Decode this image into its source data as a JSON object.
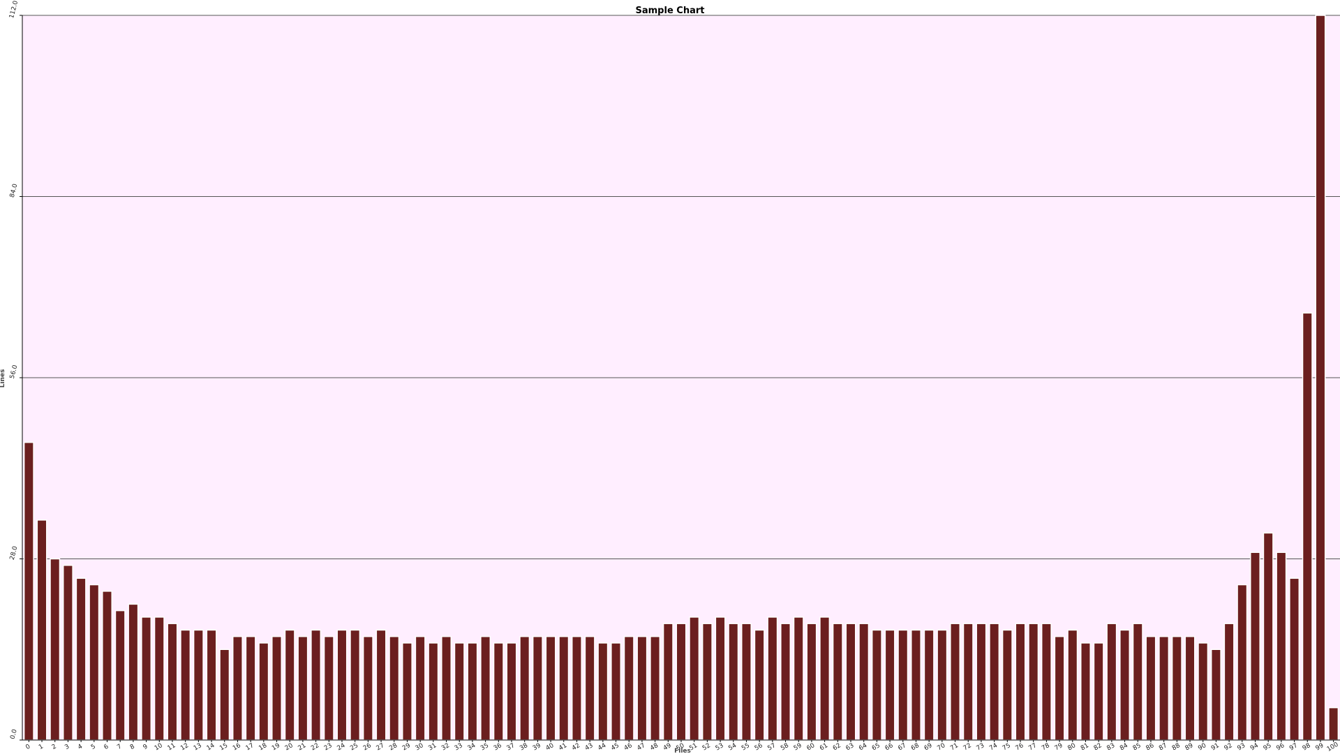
{
  "chart_data": {
    "type": "bar",
    "title": "Sample Chart",
    "xlabel": "Files",
    "ylabel": "Lines",
    "ylim": [
      0,
      112
    ],
    "yticks": [
      "0.0",
      "28.0",
      "56.0",
      "84.0",
      "112.0"
    ],
    "ytick_values": [
      0,
      28,
      56,
      84,
      112
    ],
    "grid": "horizontal",
    "categories": [
      "0",
      "1",
      "2",
      "3",
      "4",
      "5",
      "6",
      "7",
      "8",
      "9",
      "10",
      "11",
      "12",
      "13",
      "14",
      "15",
      "16",
      "17",
      "18",
      "19",
      "20",
      "21",
      "22",
      "23",
      "24",
      "25",
      "26",
      "27",
      "28",
      "29",
      "30",
      "31",
      "32",
      "33",
      "34",
      "35",
      "36",
      "37",
      "38",
      "39",
      "40",
      "41",
      "42",
      "43",
      "44",
      "45",
      "46",
      "47",
      "48",
      "49",
      "50",
      "51",
      "52",
      "53",
      "54",
      "55",
      "56",
      "57",
      "58",
      "59",
      "60",
      "61",
      "62",
      "63",
      "64",
      "65",
      "66",
      "67",
      "68",
      "69",
      "70",
      "71",
      "72",
      "73",
      "74",
      "75",
      "76",
      "77",
      "78",
      "79",
      "80",
      "81",
      "82",
      "83",
      "84",
      "85",
      "86",
      "87",
      "88",
      "89",
      "90",
      "91",
      "92",
      "93",
      "94",
      "95",
      "96",
      "97",
      "98",
      "99",
      "100"
    ],
    "values": [
      46,
      34,
      28,
      27,
      25,
      24,
      23,
      20,
      21,
      19,
      19,
      18,
      17,
      17,
      17,
      14,
      16,
      16,
      15,
      16,
      17,
      16,
      17,
      16,
      17,
      17,
      16,
      17,
      16,
      15,
      16,
      15,
      16,
      15,
      15,
      16,
      15,
      15,
      16,
      16,
      16,
      16,
      16,
      16,
      15,
      15,
      16,
      16,
      16,
      18,
      18,
      19,
      18,
      19,
      18,
      18,
      17,
      19,
      18,
      19,
      18,
      19,
      18,
      18,
      18,
      17,
      17,
      17,
      17,
      17,
      17,
      18,
      18,
      18,
      18,
      17,
      18,
      18,
      18,
      16,
      17,
      15,
      15,
      18,
      17,
      18,
      16,
      16,
      16,
      16,
      15,
      14,
      18,
      24,
      29,
      32,
      29,
      25,
      66,
      112,
      5
    ]
  },
  "colors": {
    "plot_background": "#ffeeff",
    "bar_fill": "#6b1f1f",
    "bar_edge": "#ffffff",
    "grid": "#555555",
    "axis": "#000000"
  }
}
